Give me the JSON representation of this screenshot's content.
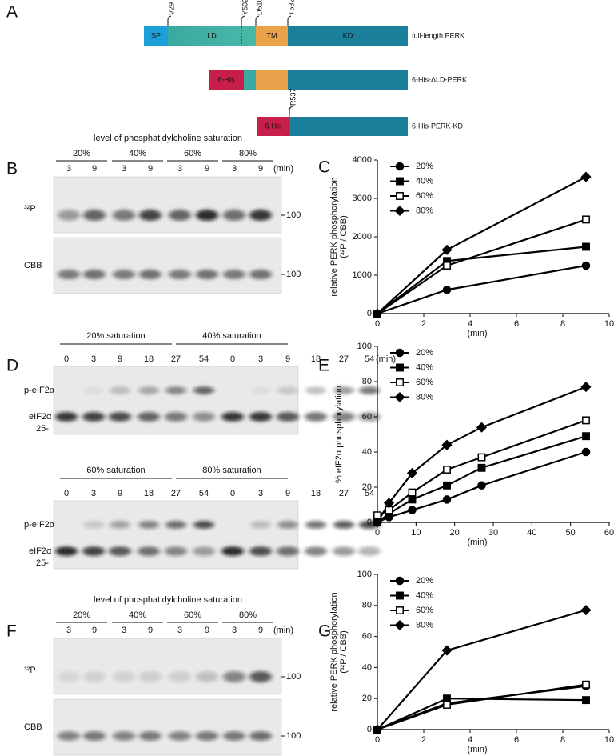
{
  "panel_labels": [
    "A",
    "B",
    "C",
    "D",
    "E",
    "F",
    "G"
  ],
  "diagram": {
    "constructs": [
      {
        "name": "full-length PERK",
        "domains": [
          "SP",
          "LD",
          "TM",
          "KD"
        ],
        "sites": [
          "V29",
          "Y502",
          "D510",
          "T532"
        ]
      },
      {
        "name": "6-His-ΔLD-PERK",
        "domains": [
          "6-His"
        ]
      },
      {
        "name": "6-His-PERK-KD",
        "domains": [
          "6-His"
        ],
        "sites": [
          "R537"
        ]
      }
    ]
  },
  "gel_b": {
    "title": "level of phosphatidylcholine saturation",
    "groups": [
      "20%",
      "40%",
      "60%",
      "80%"
    ],
    "times": [
      "3",
      "9",
      "3",
      "9",
      "3",
      "9",
      "3",
      "9"
    ],
    "time_unit": "(min)",
    "rows": [
      "³²P",
      "CBB"
    ],
    "size_marker": "100"
  },
  "gel_d": {
    "blocks": [
      {
        "groups": [
          "20% saturation",
          "40% saturation"
        ],
        "times": [
          "0",
          "3",
          "9",
          "18",
          "27",
          "54",
          "0",
          "3",
          "9",
          "18",
          "27",
          "54"
        ]
      },
      {
        "groups": [
          "60% saturation",
          "80% saturation"
        ],
        "times": [
          "0",
          "3",
          "9",
          "18",
          "27",
          "54",
          "0",
          "3",
          "9",
          "18",
          "27",
          "54"
        ]
      }
    ],
    "time_unit": "(min)",
    "bands": [
      "p-eIF2α",
      "eIF2α"
    ],
    "size_marker": "25-"
  },
  "gel_f": {
    "title": "level of phosphatidylcholine saturation",
    "groups": [
      "20%",
      "40%",
      "60%",
      "80%"
    ],
    "times": [
      "3",
      "9",
      "3",
      "9",
      "3",
      "9",
      "3",
      "9"
    ],
    "time_unit": "(min)",
    "rows": [
      "³²P",
      "CBB"
    ],
    "size_marker": "100"
  },
  "chart_data": [
    {
      "type": "line",
      "xlabel": "(min)",
      "ylabel": [
        "relative PERK phosphorylation",
        "(³²P / CBB)"
      ],
      "x": [
        0,
        3,
        9
      ],
      "xlim": [
        0,
        10
      ],
      "xticks": [
        0,
        2,
        4,
        6,
        8,
        10
      ],
      "ylim": [
        0,
        4000
      ],
      "yticks": [
        0,
        1000,
        2000,
        3000,
        4000
      ],
      "legend": "upper left",
      "series": [
        {
          "name": "20%",
          "color": "#000000",
          "marker": "circle",
          "filled": true,
          "values": [
            0,
            620,
            1250
          ]
        },
        {
          "name": "40%",
          "color": "#000000",
          "marker": "square",
          "filled": true,
          "values": [
            0,
            1370,
            1740
          ]
        },
        {
          "name": "60%",
          "color": "#000000",
          "marker": "square",
          "filled": false,
          "values": [
            0,
            1250,
            2450
          ]
        },
        {
          "name": "80%",
          "color": "#000000",
          "marker": "diamond",
          "filled": true,
          "values": [
            0,
            1660,
            3560
          ]
        }
      ]
    },
    {
      "type": "line",
      "xlabel": "(min)",
      "ylabel": [
        "% eIF2α phosphorylation"
      ],
      "x": [
        0,
        3,
        9,
        18,
        27,
        54
      ],
      "xlim": [
        0,
        60
      ],
      "xticks": [
        0,
        10,
        20,
        30,
        40,
        50,
        60
      ],
      "ylim": [
        0,
        100
      ],
      "yticks": [
        0,
        20,
        40,
        60,
        80,
        100
      ],
      "legend": "upper left",
      "series": [
        {
          "name": "20%",
          "color": "#000000",
          "marker": "circle",
          "filled": true,
          "values": [
            0,
            3,
            7,
            13,
            21,
            40
          ]
        },
        {
          "name": "40%",
          "color": "#000000",
          "marker": "square",
          "filled": true,
          "values": [
            0,
            5,
            13,
            21,
            31,
            49
          ]
        },
        {
          "name": "60%",
          "color": "#000000",
          "marker": "square",
          "filled": false,
          "values": [
            4,
            7,
            17,
            30,
            37,
            58
          ]
        },
        {
          "name": "80%",
          "color": "#000000",
          "marker": "diamond",
          "filled": true,
          "values": [
            0,
            11,
            28,
            44,
            54,
            77
          ]
        }
      ]
    },
    {
      "type": "line",
      "xlabel": "(min)",
      "ylabel": [
        "relative PERK phosphorylation",
        "(³²P / CBB)"
      ],
      "x": [
        0,
        3,
        9
      ],
      "xlim": [
        0,
        10
      ],
      "xticks": [
        0,
        2,
        4,
        6,
        8,
        10
      ],
      "ylim": [
        0,
        100
      ],
      "yticks": [
        0,
        20,
        40,
        60,
        80,
        100
      ],
      "legend": "upper left",
      "series": [
        {
          "name": "20%",
          "color": "#000000",
          "marker": "circle",
          "filled": true,
          "values": [
            0,
            17,
            28
          ]
        },
        {
          "name": "40%",
          "color": "#000000",
          "marker": "square",
          "filled": true,
          "values": [
            0,
            20,
            19
          ]
        },
        {
          "name": "60%",
          "color": "#000000",
          "marker": "square",
          "filled": false,
          "values": [
            0,
            16,
            29
          ]
        },
        {
          "name": "80%",
          "color": "#000000",
          "marker": "diamond",
          "filled": true,
          "values": [
            0,
            51,
            77
          ]
        }
      ]
    }
  ]
}
